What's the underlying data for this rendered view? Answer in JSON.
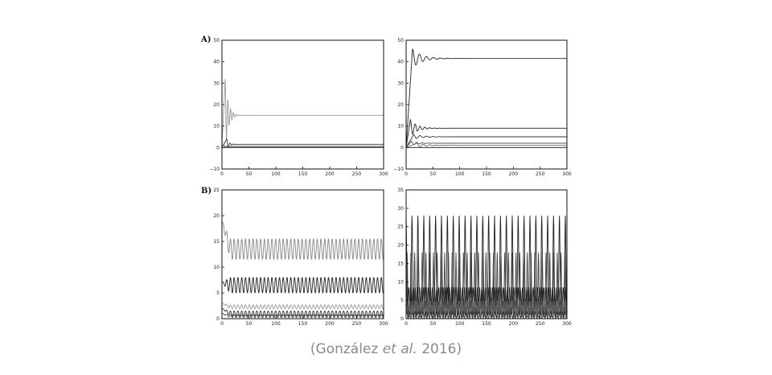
{
  "figure": {
    "panel_labels": [
      "A)",
      "B)"
    ],
    "caption": {
      "prefix": "(González ",
      "italic": "et al.",
      "suffix": " 2016)"
    }
  },
  "chart_data": [
    {
      "type": "line",
      "panel": "A) left",
      "xlim": [
        0,
        300
      ],
      "ylim": [
        -10,
        50
      ],
      "xticks": [
        0,
        50,
        100,
        150,
        200,
        250,
        300
      ],
      "yticks": [
        -10,
        0,
        10,
        20,
        30,
        40,
        50
      ],
      "series": [
        {
          "kind": "damped",
          "color": "#999999",
          "start": 0,
          "peak": 32,
          "peakx": 6,
          "final": 15,
          "amp": 17,
          "period": 5,
          "decay": 0.17
        },
        {
          "kind": "damped",
          "color": "#333333",
          "start": 0,
          "peak": 4,
          "peakx": 9,
          "final": 1.5,
          "amp": 2,
          "period": 6,
          "decay": 0.25
        },
        {
          "kind": "damped",
          "color": "#444444",
          "start": 1,
          "peak": 1,
          "peakx": 4,
          "final": 0.5,
          "amp": 0.5,
          "period": 5,
          "decay": 0.3
        },
        {
          "kind": "const",
          "color": "#111111",
          "value": 0
        }
      ]
    },
    {
      "type": "line",
      "panel": "A) right",
      "xlim": [
        0,
        300
      ],
      "ylim": [
        -10,
        50
      ],
      "xticks": [
        0,
        50,
        100,
        150,
        200,
        250,
        300
      ],
      "yticks": [
        -10,
        0,
        10,
        20,
        30,
        40,
        50
      ],
      "series": [
        {
          "kind": "damped",
          "color": "#222222",
          "start": 0,
          "peak": 46,
          "peakx": 12,
          "final": 41.5,
          "amp": 14,
          "period": 13,
          "decay": 0.06
        },
        {
          "kind": "damped",
          "color": "#222222",
          "start": 0,
          "peak": 13,
          "peakx": 8,
          "final": 9,
          "amp": 5,
          "period": 9,
          "decay": 0.08
        },
        {
          "kind": "damped",
          "color": "#333333",
          "start": 0,
          "peak": 6,
          "peakx": 14,
          "final": 5,
          "amp": 2,
          "period": 12,
          "decay": 0.05
        },
        {
          "kind": "damped",
          "color": "#555555",
          "start": 0,
          "peak": 3,
          "peakx": 10,
          "final": 2,
          "amp": 1.5,
          "period": 10,
          "decay": 0.08
        },
        {
          "kind": "damped",
          "color": "#666666",
          "start": 0,
          "peak": 2,
          "peakx": 20,
          "final": 1,
          "amp": 1,
          "period": 12,
          "decay": 0.06
        },
        {
          "kind": "const",
          "color": "#111111",
          "value": 0
        }
      ]
    },
    {
      "type": "line",
      "panel": "B) left",
      "xlim": [
        0,
        300
      ],
      "ylim": [
        0,
        25
      ],
      "xticks": [
        0,
        50,
        100,
        150,
        200,
        250,
        300
      ],
      "yticks": [
        0,
        5,
        10,
        15,
        20,
        25
      ],
      "series": [
        {
          "kind": "osc",
          "color": "#888888",
          "start": 19,
          "center": 13.5,
          "amp": 2,
          "period": 7,
          "transient": 15
        },
        {
          "kind": "osc",
          "color": "#222222",
          "start": 7,
          "center": 6.5,
          "amp": 1.5,
          "period": 7,
          "transient": 15
        },
        {
          "kind": "osc",
          "color": "#999999",
          "start": 3,
          "center": 2.3,
          "amp": 0.4,
          "period": 7,
          "transient": 15
        },
        {
          "kind": "osc",
          "color": "#333333",
          "start": 2,
          "center": 1.0,
          "amp": 0.5,
          "period": 7,
          "transient": 15
        },
        {
          "kind": "osc",
          "color": "#444444",
          "start": 1,
          "center": 0.5,
          "amp": 0.3,
          "period": 7,
          "transient": 15
        }
      ]
    },
    {
      "type": "line",
      "panel": "B) right",
      "xlim": [
        0,
        300
      ],
      "ylim": [
        0,
        35
      ],
      "xticks": [
        0,
        50,
        100,
        150,
        200,
        250,
        300
      ],
      "yticks": [
        0,
        5,
        10,
        15,
        20,
        25,
        30,
        35
      ],
      "series": [
        {
          "kind": "spike",
          "color": "#222222",
          "base": 0.5,
          "peak": 28,
          "period": 11,
          "phase": 0,
          "width": 2.2
        },
        {
          "kind": "spike",
          "color": "#444444",
          "base": 1,
          "peak": 18,
          "period": 7,
          "phase": 2,
          "width": 1.6
        },
        {
          "kind": "osc",
          "color": "#222222",
          "start": 6,
          "center": 6,
          "amp": 2.5,
          "period": 4,
          "transient": 0
        },
        {
          "kind": "osc",
          "color": "#555555",
          "start": 3,
          "center": 3,
          "amp": 2,
          "period": 3,
          "transient": 0
        },
        {
          "kind": "osc",
          "color": "#333333",
          "start": 1,
          "center": 1,
          "amp": 1,
          "period": 5,
          "transient": 0
        }
      ]
    }
  ]
}
